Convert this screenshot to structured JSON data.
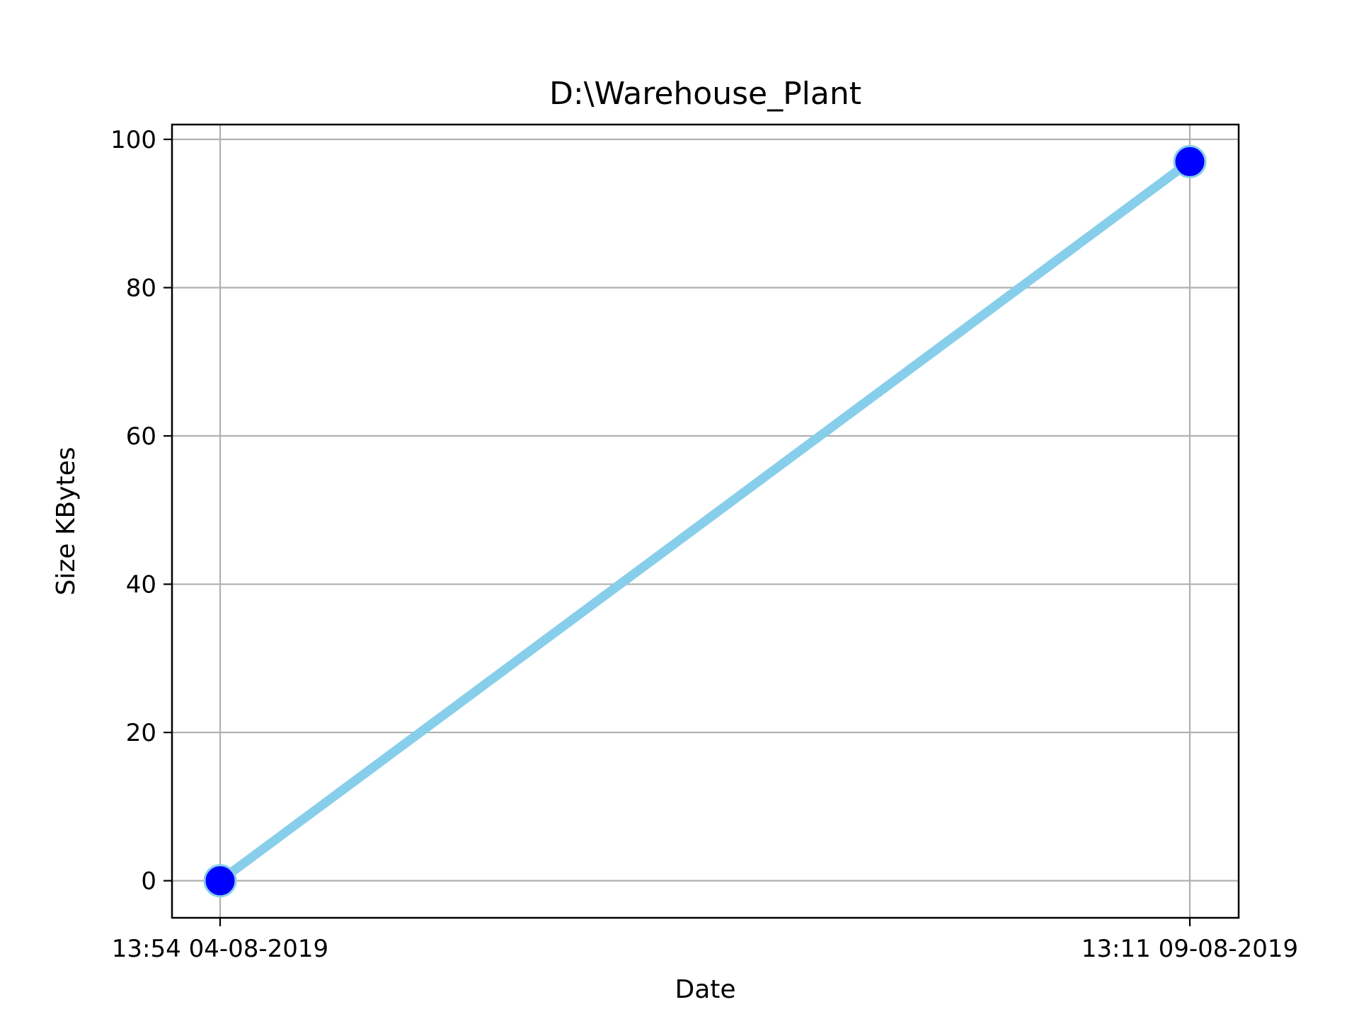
{
  "chart_data": {
    "type": "line",
    "title": "D:\\Warehouse_Plant",
    "xlabel": "Date",
    "ylabel": "Size KBytes",
    "x": [
      "13:54 04-08-2019",
      "13:11 09-08-2019"
    ],
    "x_ticks": [
      "13:54 04-08-2019",
      "13:11 09-08-2019"
    ],
    "y_ticks": [
      0,
      20,
      40,
      60,
      80,
      100
    ],
    "ylim": [
      -5,
      102
    ],
    "grid": true,
    "series": [
      {
        "values": [
          0,
          97
        ],
        "line_color": "#87ceeb",
        "marker_color": "#0000ff",
        "marker_edge_color": "#87ceeb"
      }
    ]
  },
  "colors": {
    "grid": "#b0b0b0",
    "axes": "#000000"
  }
}
